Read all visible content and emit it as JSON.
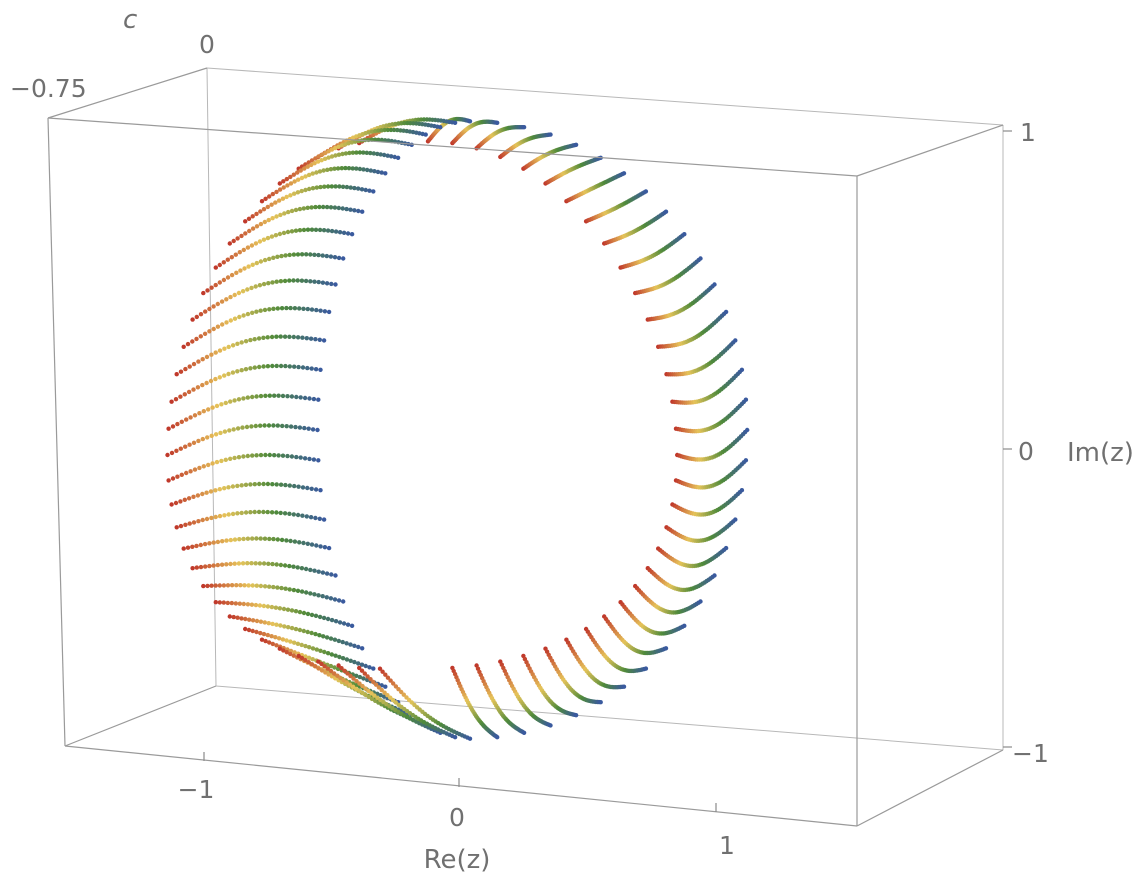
{
  "chart_data": {
    "type": "scatter",
    "subtype": "3d-point-trajectories",
    "title": "",
    "axes": {
      "x": {
        "label": "Re(z)",
        "ticks": [
          "−1",
          "0",
          "1"
        ],
        "range": [
          -1.5,
          1.55
        ]
      },
      "y": {
        "label": "Im(z)",
        "ticks": [
          "−1",
          "0",
          "1"
        ],
        "range": [
          -1.05,
          1.05
        ]
      },
      "c": {
        "label": "c",
        "ticks": [
          "−0.75",
          "0"
        ],
        "range": [
          -0.75,
          0
        ]
      }
    },
    "grid": false,
    "box": true,
    "color_scale": [
      "#c0392b",
      "#e6c45a",
      "#4f8a3a",
      "#3a5a9e"
    ],
    "color_meaning": "parameter along each trajectory: red at start, blue at end",
    "series": {
      "description": "One trajectory per starting angle around the unit circle",
      "count": 64,
      "angles_deg_step": 5.625
    }
  },
  "labels": {
    "re_axis": "Re(z)",
    "im_axis": "Im(z)",
    "c_axis": "c",
    "re_ticks": [
      "−1",
      "0",
      "1"
    ],
    "im_ticks": [
      "−1",
      "0",
      "1"
    ],
    "c_ticks": [
      "−0.75",
      "0"
    ]
  }
}
